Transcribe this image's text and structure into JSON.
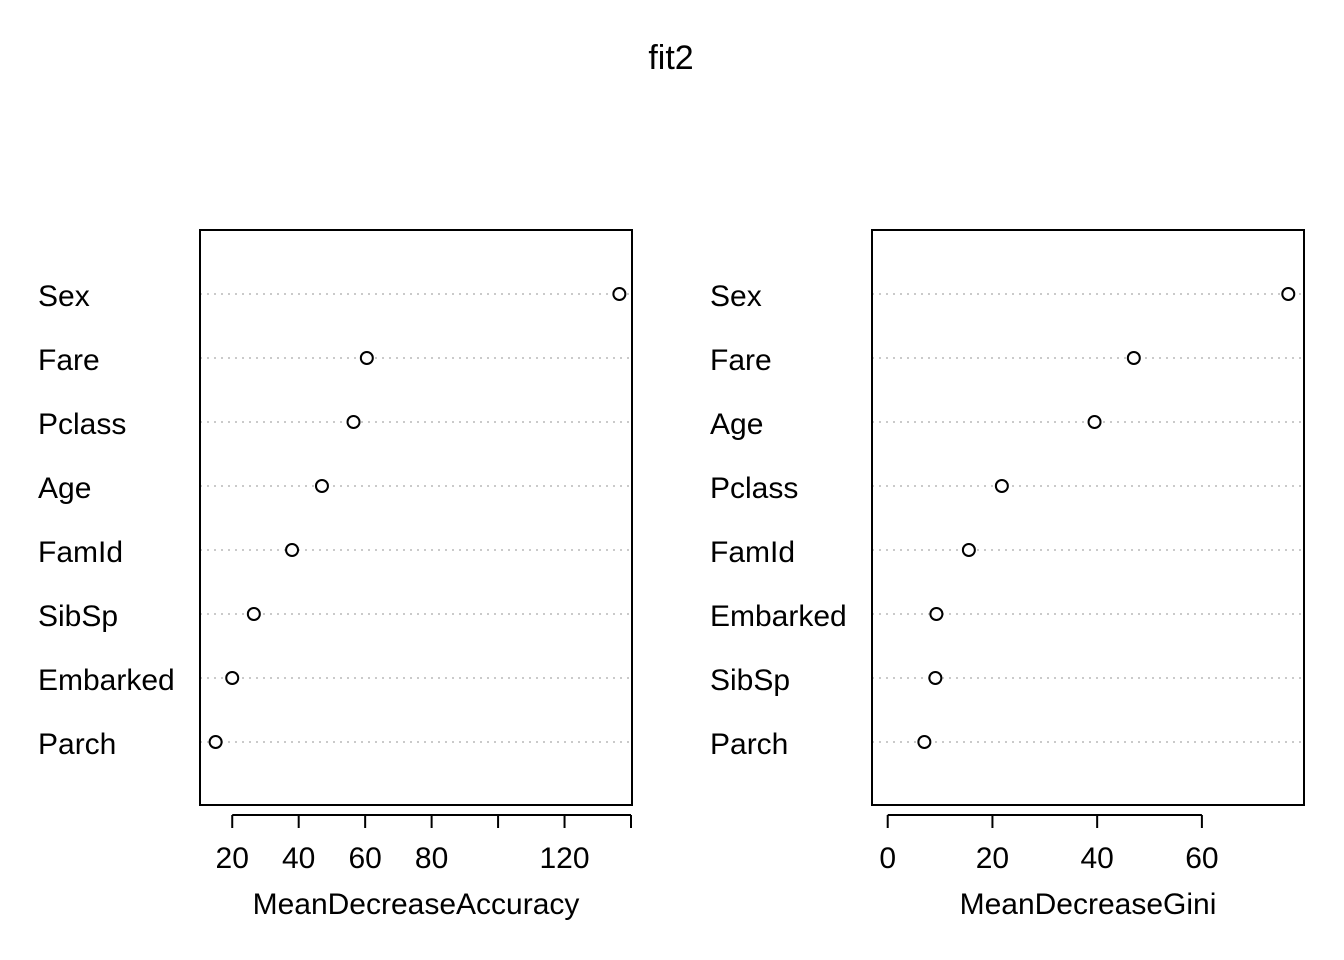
{
  "title": "fit2",
  "chart_data": [
    {
      "type": "scatter",
      "title": "",
      "xlabel": "MeanDecreaseAccuracy",
      "ylabel": "",
      "grid": false,
      "xlim": [
        10.3,
        140.3
      ],
      "x_ticks": [
        20,
        40,
        60,
        80,
        100,
        120,
        140
      ],
      "x_tick_labels": [
        "20",
        "40",
        "60",
        "80",
        "",
        "120",
        ""
      ],
      "categories": [
        "Sex",
        "Fare",
        "Pclass",
        "Age",
        "FamId",
        "SibSp",
        "Embarked",
        "Parch"
      ],
      "values": [
        136.5,
        60.5,
        56.5,
        47,
        38,
        26.5,
        20,
        15
      ]
    },
    {
      "type": "scatter",
      "title": "",
      "xlabel": "MeanDecreaseGini",
      "ylabel": "",
      "grid": false,
      "xlim": [
        -3,
        79.5
      ],
      "x_ticks": [
        0,
        20,
        40,
        60
      ],
      "x_tick_labels": [
        "0",
        "20",
        "40",
        "60"
      ],
      "categories": [
        "Sex",
        "Fare",
        "Age",
        "Pclass",
        "FamId",
        "Embarked",
        "SibSp",
        "Parch"
      ],
      "values": [
        76.5,
        47,
        39.5,
        21.8,
        15.5,
        9.3,
        9.1,
        7
      ]
    }
  ]
}
